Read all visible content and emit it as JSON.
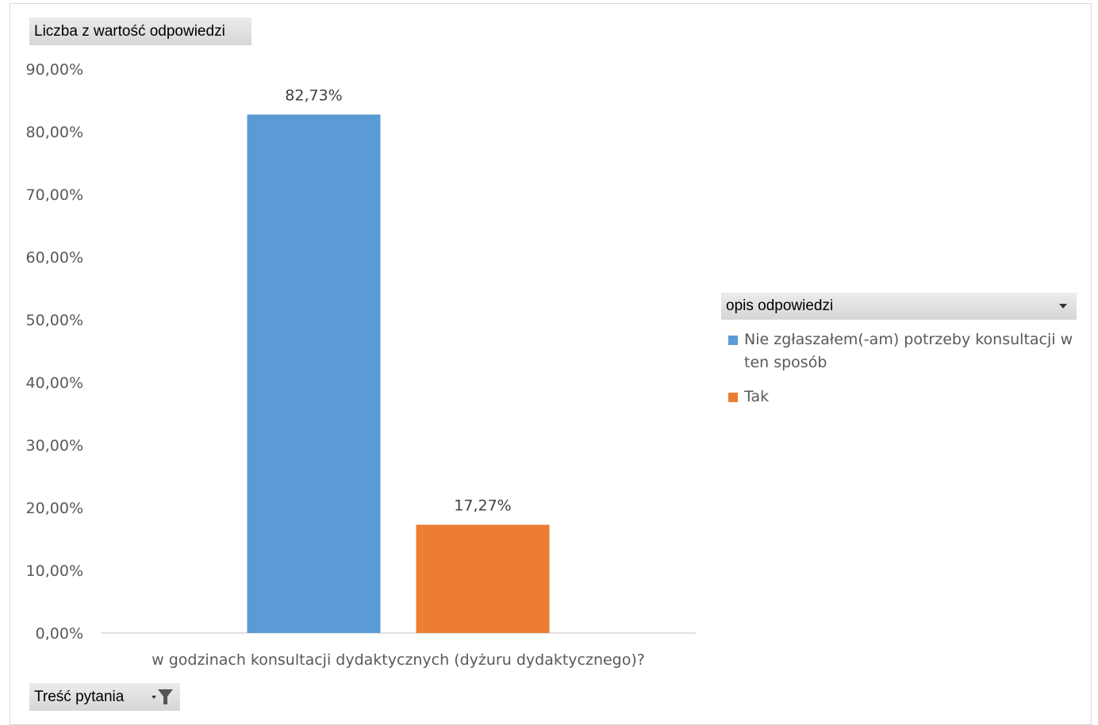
{
  "field_buttons": {
    "value_field": "Liczba z wartość odpowiedzi",
    "category_field": "Treść pytania",
    "legend_field": "opis odpowiedzi"
  },
  "icons": {
    "category_filter": "filter-icon",
    "legend_dropdown": "chevron-down-icon"
  },
  "chart_data": {
    "type": "bar",
    "categories": [
      "w godzinach konsultacji dydaktycznych (dyżuru dydaktycznego)?"
    ],
    "series": [
      {
        "name": "Nie zgłaszałem(-am) potrzeby konsultacji w ten sposób",
        "values": [
          82.73
        ],
        "labels": [
          "82,73%"
        ],
        "color": "#5b9bd5"
      },
      {
        "name": "Tak",
        "values": [
          17.27
        ],
        "labels": [
          "17,27%"
        ],
        "color": "#ed7d31"
      }
    ],
    "ylim": [
      0,
      90
    ],
    "yticks": [
      "0,00%",
      "10,00%",
      "20,00%",
      "30,00%",
      "40,00%",
      "50,00%",
      "60,00%",
      "70,00%",
      "80,00%",
      "90,00%"
    ],
    "grid": false,
    "legend_position": "right",
    "title": "",
    "xlabel": "",
    "ylabel": ""
  }
}
